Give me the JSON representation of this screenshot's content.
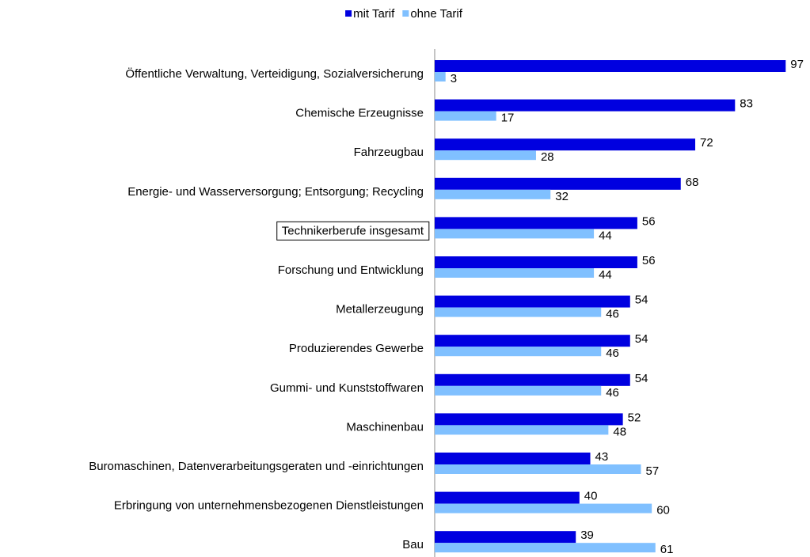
{
  "chart_data": {
    "type": "bar",
    "orientation": "horizontal",
    "categories": [
      "Öffentliche Verwaltung, Verteidigung, Sozialversicherung",
      "Chemische Erzeugnisse",
      "Fahrzeugbau",
      "Energie- und Wasserversorgung; Entsorgung; Recycling",
      "Technikerberufe insgesamt",
      "Forschung und Entwicklung",
      "Metallerzeugung",
      "Produzierendes Gewerbe",
      "Gummi- und Kunststoffwaren",
      "Maschinenbau",
      "Buromaschinen, Datenverarbeitungsgeraten und -einrichtungen",
      "Erbringung von unternehmensbezogenen Dienstleistungen",
      "Bau"
    ],
    "series": [
      {
        "name": "mit Tarif",
        "color": "#0000e0",
        "values": [
          97,
          83,
          72,
          68,
          56,
          56,
          54,
          54,
          54,
          52,
          43,
          40,
          39
        ]
      },
      {
        "name": "ohne Tarif",
        "color": "#80c0ff",
        "values": [
          3,
          17,
          28,
          32,
          44,
          44,
          46,
          46,
          46,
          48,
          57,
          60,
          61
        ]
      }
    ],
    "xlim": [
      0,
      100
    ],
    "legend": "top",
    "boxed_categories": [
      4
    ]
  }
}
